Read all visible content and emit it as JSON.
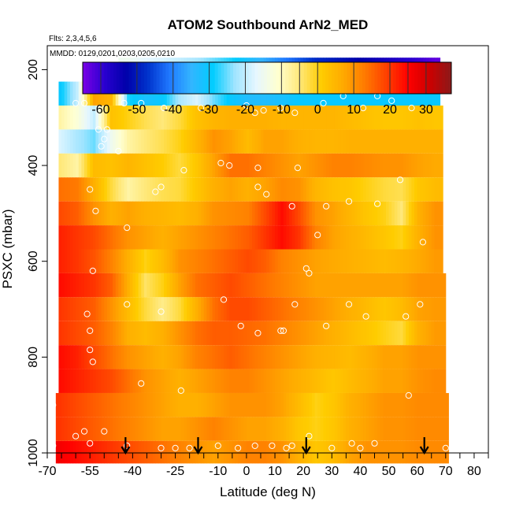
{
  "chart_data": {
    "type": "heatmap",
    "title": "ATOM2 Southbound ArN2_MED",
    "subtitle_flights": "Flts: 2,3,4,5,6",
    "subtitle_dates": "MMDD: 0129,0201,0203,0205,0210",
    "xlabel": "Latitude (deg N)",
    "ylabel": "PSXC (mbar)",
    "xlim": [
      -70,
      85
    ],
    "ylim": [
      1000,
      150
    ],
    "y_reversed": true,
    "x_ticks": [
      -70,
      -55,
      -40,
      -25,
      -10,
      0,
      10,
      20,
      30,
      40,
      50,
      60,
      70,
      80
    ],
    "x_minor_ticks": [
      -65,
      -60,
      -50,
      -45,
      -35,
      -30,
      -20,
      -15,
      -5,
      5,
      15,
      25,
      35,
      45,
      55,
      65,
      75,
      85
    ],
    "y_ticks": [
      200,
      400,
      600,
      800,
      1000
    ],
    "colorbar": {
      "min": -65,
      "max": 37,
      "ticks": [
        -60,
        -50,
        -40,
        -30,
        -20,
        -10,
        0,
        10,
        20,
        30
      ],
      "colors": [
        "#7a00e6",
        "#2a00d0",
        "#0000aa",
        "#0033cc",
        "#1f78ff",
        "#33b5ff",
        "#00ccff",
        "#9fe4ff",
        "#e6f7ff",
        "#ffffd0",
        "#ffe87a",
        "#ffcc00",
        "#ffaa00",
        "#ff7a00",
        "#ff4000",
        "#ff0000",
        "#cc0000",
        "#8b1a1a"
      ]
    },
    "pressure_bins": [
      200,
      250,
      300,
      350,
      400,
      450,
      500,
      550,
      600,
      650,
      700,
      750,
      800,
      850,
      900,
      950,
      1000
    ],
    "heatmap_lat_nodes": [
      -66,
      -60,
      -54,
      -48,
      -42,
      -36,
      -30,
      -24,
      -18,
      -12,
      -6,
      0,
      6,
      12,
      18,
      24,
      30,
      36,
      42,
      48,
      54,
      60,
      66,
      71
    ],
    "heatmap_rows": [
      {
        "p": 200,
        "lat_min": -45,
        "lat_max": 68,
        "values": [
          null,
          null,
          null,
          null,
          -15,
          -17,
          -18,
          -20,
          -22,
          -25,
          -28,
          -32,
          -36,
          -40,
          -44,
          -48,
          -50,
          -52,
          -54,
          -56,
          -58,
          -60,
          -63,
          null
        ]
      },
      {
        "p": 250,
        "lat_min": -66,
        "lat_max": 68,
        "values": [
          -30,
          -20,
          8,
          5,
          -28,
          -32,
          -30,
          -22,
          -18,
          -25,
          -30,
          -33,
          -33,
          -32,
          -30,
          -30,
          -30,
          -30,
          -30,
          -30,
          -30,
          -30,
          -30,
          null
        ]
      },
      {
        "p": 300,
        "lat_min": -66,
        "lat_max": 69,
        "values": [
          -8,
          -12,
          -20,
          3,
          0,
          -3,
          -5,
          -2,
          3,
          5,
          6,
          6,
          6,
          5,
          5,
          5,
          5,
          4,
          3,
          2,
          2,
          3,
          2,
          null
        ]
      },
      {
        "p": 350,
        "lat_min": -66,
        "lat_max": 69,
        "values": [
          -18,
          -22,
          -25,
          -15,
          -8,
          -5,
          -3,
          0,
          5,
          10,
          8,
          4,
          8,
          8,
          6,
          5,
          5,
          6,
          6,
          6,
          6,
          6,
          6,
          null
        ]
      },
      {
        "p": 400,
        "lat_min": -66,
        "lat_max": 69,
        "values": [
          -5,
          -8,
          4,
          3,
          5,
          3,
          1,
          -2,
          2,
          8,
          14,
          14,
          12,
          10,
          8,
          10,
          12,
          12,
          11,
          10,
          10,
          8,
          7,
          null
        ]
      },
      {
        "p": 450,
        "lat_min": -66,
        "lat_max": 69,
        "values": [
          14,
          13,
          6,
          -2,
          -8,
          -5,
          -3,
          -2,
          2,
          6,
          8,
          6,
          8,
          11,
          10,
          5,
          3,
          2,
          0,
          -2,
          -3,
          2,
          4,
          null
        ]
      },
      {
        "p": 500,
        "lat_min": -66,
        "lat_max": 69,
        "values": [
          18,
          16,
          10,
          6,
          8,
          6,
          5,
          4,
          6,
          10,
          11,
          12,
          18,
          24,
          18,
          10,
          8,
          5,
          2,
          0,
          -5,
          6,
          10,
          null
        ]
      },
      {
        "p": 550,
        "lat_min": -66,
        "lat_max": 69,
        "values": [
          22,
          20,
          18,
          14,
          10,
          8,
          6,
          8,
          10,
          12,
          14,
          16,
          20,
          24,
          20,
          12,
          8,
          6,
          4,
          2,
          0,
          6,
          10,
          null
        ]
      },
      {
        "p": 600,
        "lat_min": -66,
        "lat_max": 69,
        "values": [
          22,
          20,
          17,
          12,
          6,
          0,
          4,
          10,
          12,
          14,
          16,
          18,
          16,
          12,
          10,
          8,
          7,
          6,
          5,
          4,
          5,
          7,
          9,
          null
        ]
      },
      {
        "p": 650,
        "lat_min": -66,
        "lat_max": 70,
        "values": [
          24,
          22,
          20,
          16,
          6,
          -4,
          0,
          8,
          14,
          16,
          18,
          16,
          14,
          12,
          10,
          8,
          8,
          8,
          8,
          8,
          8,
          10,
          10,
          null
        ]
      },
      {
        "p": 700,
        "lat_min": -66,
        "lat_max": 70,
        "values": [
          20,
          18,
          16,
          10,
          4,
          -2,
          -6,
          -2,
          6,
          14,
          18,
          18,
          16,
          14,
          12,
          10,
          8,
          6,
          4,
          2,
          4,
          8,
          9,
          null
        ]
      },
      {
        "p": 750,
        "lat_min": -66,
        "lat_max": 70,
        "values": [
          20,
          18,
          16,
          12,
          6,
          4,
          6,
          10,
          14,
          16,
          16,
          15,
          14,
          12,
          10,
          8,
          6,
          4,
          2,
          0,
          -2,
          6,
          9,
          null
        ]
      },
      {
        "p": 800,
        "lat_min": -66,
        "lat_max": 70,
        "values": [
          24,
          22,
          18,
          14,
          10,
          8,
          6,
          8,
          12,
          14,
          16,
          14,
          12,
          10,
          8,
          6,
          5,
          4,
          6,
          8,
          8,
          10,
          10,
          null
        ]
      },
      {
        "p": 850,
        "lat_min": -66,
        "lat_max": 70,
        "values": [
          24,
          22,
          20,
          18,
          14,
          10,
          8,
          6,
          8,
          10,
          12,
          12,
          10,
          8,
          6,
          4,
          2,
          4,
          6,
          8,
          8,
          10,
          11,
          null
        ]
      },
      {
        "p": 900,
        "lat_min": -67,
        "lat_max": 71,
        "values": [
          20,
          18,
          16,
          14,
          12,
          10,
          8,
          6,
          6,
          8,
          10,
          10,
          10,
          8,
          4,
          0,
          2,
          6,
          8,
          10,
          10,
          11,
          11,
          null
        ]
      },
      {
        "p": 950,
        "lat_min": -67,
        "lat_max": 71,
        "values": [
          20,
          18,
          16,
          14,
          12,
          10,
          8,
          8,
          10,
          12,
          10,
          8,
          8,
          6,
          2,
          0,
          2,
          6,
          8,
          10,
          10,
          11,
          11,
          null
        ]
      },
      {
        "p": 1000,
        "lat_min": -67,
        "lat_max": 71,
        "values": [
          26,
          24,
          22,
          20,
          18,
          16,
          14,
          12,
          10,
          8,
          10,
          12,
          12,
          10,
          6,
          2,
          4,
          8,
          10,
          10,
          10,
          11,
          11,
          null
        ]
      }
    ],
    "sample_points": [
      [
        -45,
        215
      ],
      [
        -35,
        240
      ],
      [
        -15,
        240
      ],
      [
        -12,
        240
      ],
      [
        58,
        240
      ],
      [
        65,
        200
      ],
      [
        68,
        200
      ],
      [
        -60,
        270
      ],
      [
        -57,
        270
      ],
      [
        -43,
        270
      ],
      [
        -37,
        270
      ],
      [
        -29,
        280
      ],
      [
        -16,
        280
      ],
      [
        0,
        275
      ],
      [
        3,
        290
      ],
      [
        6,
        285
      ],
      [
        12,
        280
      ],
      [
        17,
        290
      ],
      [
        27,
        270
      ],
      [
        34,
        255
      ],
      [
        41,
        280
      ],
      [
        46,
        255
      ],
      [
        51,
        265
      ],
      [
        58,
        280
      ],
      [
        -52,
        325
      ],
      [
        -49,
        325
      ],
      [
        -50,
        345
      ],
      [
        -45,
        370
      ],
      [
        -51,
        360
      ],
      [
        -22,
        410
      ],
      [
        -9,
        395
      ],
      [
        4,
        405
      ],
      [
        18,
        405
      ],
      [
        -6,
        400
      ],
      [
        -68,
        430
      ],
      [
        -55,
        450
      ],
      [
        -32,
        455
      ],
      [
        -30,
        445
      ],
      [
        4,
        445
      ],
      [
        7,
        460
      ],
      [
        28,
        485
      ],
      [
        36,
        475
      ],
      [
        46,
        480
      ],
      [
        54,
        430
      ],
      [
        -53,
        495
      ],
      [
        -42,
        530
      ],
      [
        16,
        485
      ],
      [
        25,
        545
      ],
      [
        62,
        560
      ],
      [
        -68,
        640
      ],
      [
        -54,
        620
      ],
      [
        21,
        615
      ],
      [
        22,
        625
      ],
      [
        -68,
        650
      ],
      [
        -30,
        705
      ],
      [
        -42,
        690
      ],
      [
        17,
        690
      ],
      [
        36,
        690
      ],
      [
        61,
        690
      ],
      [
        -56,
        710
      ],
      [
        -55,
        745
      ],
      [
        -8,
        680
      ],
      [
        -2,
        735
      ],
      [
        4,
        750
      ],
      [
        12,
        745
      ],
      [
        13,
        745
      ],
      [
        28,
        735
      ],
      [
        42,
        715
      ],
      [
        56,
        715
      ],
      [
        -55,
        785
      ],
      [
        -54,
        810
      ],
      [
        -37,
        855
      ],
      [
        -23,
        870
      ],
      [
        57,
        880
      ],
      [
        -68,
        900
      ],
      [
        -60,
        965
      ],
      [
        -57,
        955
      ],
      [
        -55,
        980
      ],
      [
        -50,
        955
      ],
      [
        -42,
        985
      ],
      [
        -30,
        990
      ],
      [
        -25,
        990
      ],
      [
        -20,
        990
      ],
      [
        -10,
        985
      ],
      [
        -3,
        990
      ],
      [
        3,
        985
      ],
      [
        9,
        985
      ],
      [
        14,
        990
      ],
      [
        16,
        985
      ],
      [
        22,
        965
      ],
      [
        30,
        990
      ],
      [
        37,
        980
      ],
      [
        40,
        990
      ],
      [
        45,
        980
      ],
      [
        70,
        990
      ],
      [
        -68,
        985
      ]
    ],
    "arrow_latitudes": [
      -42.5,
      -17,
      21,
      62.5
    ]
  }
}
